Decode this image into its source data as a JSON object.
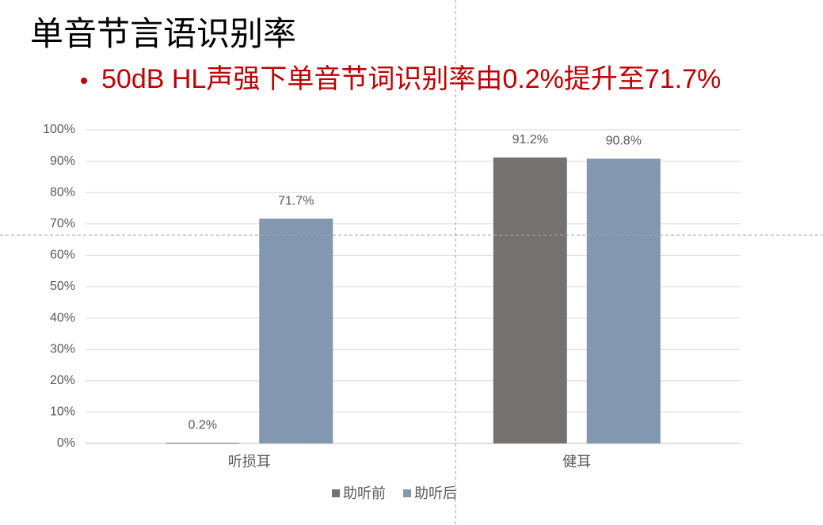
{
  "chart_data": {
    "type": "bar",
    "title": "单音节言语识别率",
    "subtitle": "50dB HL声强下单音节词识别率由0.2%提升至71.7%",
    "categories": [
      "听损耳",
      "健耳"
    ],
    "series": [
      {
        "name": "助听前",
        "color": "#767171",
        "values": [
          0.2,
          91.2
        ],
        "value_labels": [
          "0.2%",
          "91.2%"
        ]
      },
      {
        "name": "助听后",
        "color": "#8497b0",
        "values": [
          71.7,
          90.8
        ],
        "value_labels": [
          "71.7%",
          "90.8%"
        ]
      }
    ],
    "ylim": [
      0,
      100
    ],
    "yticks": [
      {
        "value": 0,
        "label": "0%"
      },
      {
        "value": 10,
        "label": "10%"
      },
      {
        "value": 20,
        "label": "20%"
      },
      {
        "value": 30,
        "label": "30%"
      },
      {
        "value": 40,
        "label": "40%"
      },
      {
        "value": 50,
        "label": "50%"
      },
      {
        "value": 60,
        "label": "60%"
      },
      {
        "value": 70,
        "label": "70%"
      },
      {
        "value": 80,
        "label": "80%"
      },
      {
        "value": 90,
        "label": "90%"
      },
      {
        "value": 100,
        "label": "100%"
      }
    ],
    "grid": true,
    "legend": "bottom"
  }
}
